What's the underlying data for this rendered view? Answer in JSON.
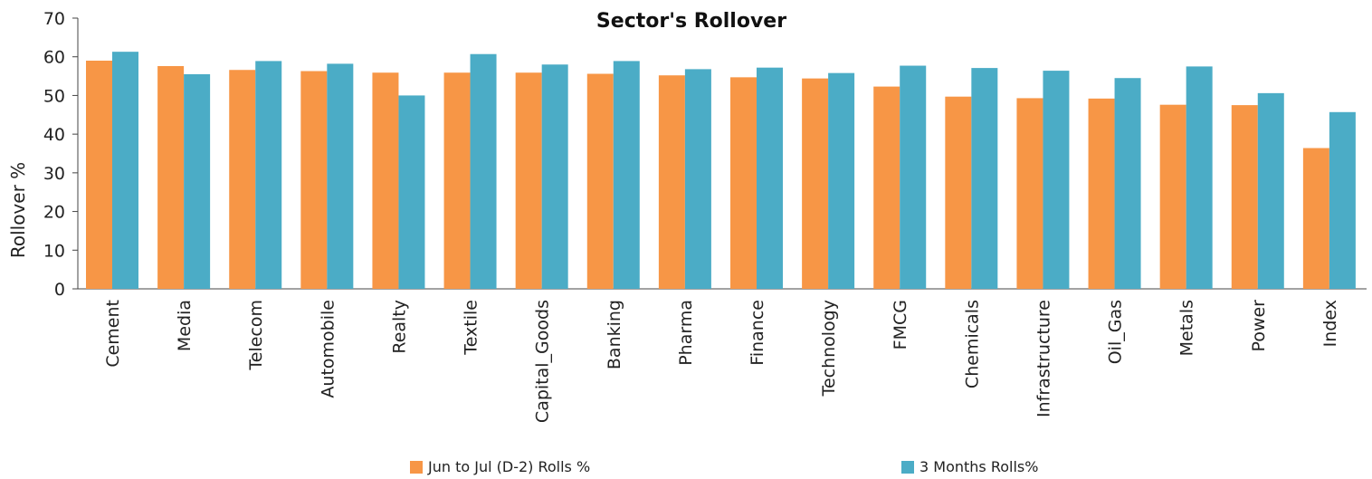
{
  "chart_data": {
    "type": "bar",
    "title": "Sector's Rollover",
    "xlabel": "",
    "ylabel": "Rollover %",
    "ylim": [
      0,
      70
    ],
    "yticks": [
      0,
      10,
      20,
      30,
      40,
      50,
      60,
      70
    ],
    "grid": false,
    "legend_position": "bottom",
    "categories": [
      "Cement",
      "Media",
      "Telecom",
      "Automobile",
      "Realty",
      "Textile",
      "Capital_Goods",
      "Banking",
      "Pharma",
      "Finance",
      "Technology",
      "FMCG",
      "Chemicals",
      "Infrastructure",
      "Oil_Gas",
      "Metals",
      "Power",
      "Index"
    ],
    "series": [
      {
        "name": "Jun to Jul (D-2) Rolls %",
        "color": "#f79646",
        "values": [
          59.0,
          57.6,
          56.6,
          56.3,
          55.9,
          55.9,
          55.9,
          55.6,
          55.2,
          54.7,
          54.4,
          52.3,
          49.7,
          49.3,
          49.2,
          47.6,
          47.5,
          36.4
        ]
      },
      {
        "name": "3 Months Rolls%",
        "color": "#4bacc6",
        "values": [
          61.3,
          55.5,
          58.9,
          58.2,
          50.0,
          60.7,
          58.0,
          58.9,
          56.8,
          57.2,
          55.8,
          57.7,
          57.1,
          56.4,
          54.5,
          57.5,
          50.6,
          45.7
        ]
      }
    ]
  }
}
